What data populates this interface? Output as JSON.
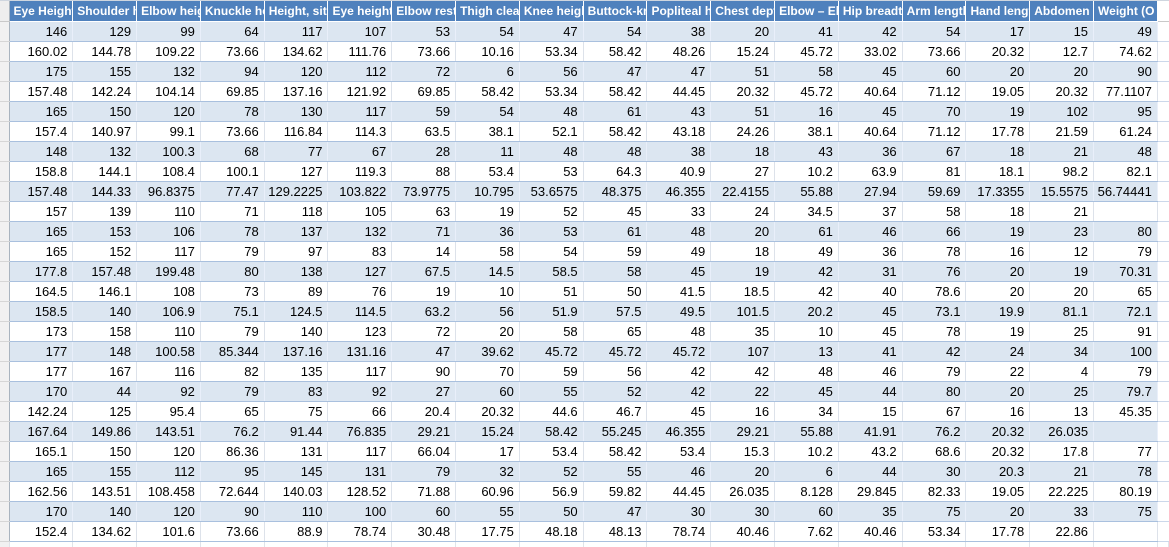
{
  "colors": {
    "header_bg": "#4F81BD",
    "band_bg": "#DCE6F1",
    "row_border": "#95B3D7",
    "header_text": "#FFFFFF",
    "cell_text": "#000000"
  },
  "table": {
    "headers": [
      "Eye Height",
      "Shoulder h",
      "Elbow heig",
      "Knuckle he",
      "Height, sit",
      "Eye height",
      "Elbow rest",
      "Thigh clear",
      "Knee heigh",
      "Buttock-kn",
      "Popliteal h",
      "Chest dept",
      "Elbow – Elb",
      "Hip breadt",
      "Arm length",
      "Hand lengt",
      "Abdomen",
      "Weight (O"
    ],
    "rows": [
      [
        "146",
        "129",
        "99",
        "64",
        "117",
        "107",
        "53",
        "54",
        "47",
        "54",
        "38",
        "20",
        "41",
        "42",
        "54",
        "17",
        "15",
        "49"
      ],
      [
        "160.02",
        "144.78",
        "109.22",
        "73.66",
        "134.62",
        "111.76",
        "73.66",
        "10.16",
        "53.34",
        "58.42",
        "48.26",
        "15.24",
        "45.72",
        "33.02",
        "73.66",
        "20.32",
        "12.7",
        "74.62"
      ],
      [
        "175",
        "155",
        "132",
        "94",
        "120",
        "112",
        "72",
        "6",
        "56",
        "47",
        "47",
        "51",
        "58",
        "45",
        "60",
        "20",
        "20",
        "90"
      ],
      [
        "157.48",
        "142.24",
        "104.14",
        "69.85",
        "137.16",
        "121.92",
        "69.85",
        "58.42",
        "53.34",
        "58.42",
        "44.45",
        "20.32",
        "45.72",
        "40.64",
        "71.12",
        "19.05",
        "20.32",
        "77.1107"
      ],
      [
        "165",
        "150",
        "120",
        "78",
        "130",
        "117",
        "59",
        "54",
        "48",
        "61",
        "43",
        "51",
        "16",
        "45",
        "70",
        "19",
        "102",
        "95"
      ],
      [
        "157.4",
        "140.97",
        "99.1",
        "73.66",
        "116.84",
        "114.3",
        "63.5",
        "38.1",
        "52.1",
        "58.42",
        "43.18",
        "24.26",
        "38.1",
        "40.64",
        "71.12",
        "17.78",
        "21.59",
        "61.24"
      ],
      [
        "148",
        "132",
        "100.3",
        "68",
        "77",
        "67",
        "28",
        "11",
        "48",
        "48",
        "38",
        "18",
        "43",
        "36",
        "67",
        "18",
        "21",
        "48"
      ],
      [
        "158.8",
        "144.1",
        "108.4",
        "100.1",
        "127",
        "119.3",
        "88",
        "53.4",
        "53",
        "64.3",
        "40.9",
        "27",
        "10.2",
        "63.9",
        "81",
        "18.1",
        "98.2",
        "82.1"
      ],
      [
        "157.48",
        "144.33",
        "96.8375",
        "77.47",
        "129.2225",
        "103.822",
        "73.9775",
        "10.795",
        "53.6575",
        "48.375",
        "46.355",
        "22.4155",
        "55.88",
        "27.94",
        "59.69",
        "17.3355",
        "15.5575",
        "56.74441"
      ],
      [
        "157",
        "139",
        "110",
        "71",
        "118",
        "105",
        "63",
        "19",
        "52",
        "45",
        "33",
        "24",
        "34.5",
        "37",
        "58",
        "18",
        "21",
        ""
      ],
      [
        "165",
        "153",
        "106",
        "78",
        "137",
        "132",
        "71",
        "36",
        "53",
        "61",
        "48",
        "20",
        "61",
        "46",
        "66",
        "19",
        "23",
        "80"
      ],
      [
        "165",
        "152",
        "117",
        "79",
        "97",
        "83",
        "14",
        "58",
        "54",
        "59",
        "49",
        "18",
        "49",
        "36",
        "78",
        "16",
        "12",
        "79"
      ],
      [
        "177.8",
        "157.48",
        "199.48",
        "80",
        "138",
        "127",
        "67.5",
        "14.5",
        "58.5",
        "58",
        "45",
        "19",
        "42",
        "31",
        "76",
        "20",
        "19",
        "70.31"
      ],
      [
        "164.5",
        "146.1",
        "108",
        "73",
        "89",
        "76",
        "19",
        "10",
        "51",
        "50",
        "41.5",
        "18.5",
        "42",
        "40",
        "78.6",
        "20",
        "20",
        "65"
      ],
      [
        "158.5",
        "140",
        "106.9",
        "75.1",
        "124.5",
        "114.5",
        "63.2",
        "56",
        "51.9",
        "57.5",
        "49.5",
        "101.5",
        "20.2",
        "45",
        "73.1",
        "19.9",
        "81.1",
        "72.1"
      ],
      [
        "173",
        "158",
        "110",
        "79",
        "140",
        "123",
        "72",
        "20",
        "58",
        "65",
        "48",
        "35",
        "10",
        "45",
        "78",
        "19",
        "25",
        "91"
      ],
      [
        "177",
        "148",
        "100.58",
        "85.344",
        "137.16",
        "131.16",
        "47",
        "39.62",
        "45.72",
        "45.72",
        "45.72",
        "107",
        "13",
        "41",
        "42",
        "24",
        "34",
        "100"
      ],
      [
        "177",
        "167",
        "116",
        "82",
        "135",
        "117",
        "90",
        "70",
        "59",
        "56",
        "42",
        "42",
        "48",
        "46",
        "79",
        "22",
        "4",
        "79"
      ],
      [
        "170",
        "44",
        "92",
        "79",
        "83",
        "92",
        "27",
        "60",
        "55",
        "52",
        "42",
        "22",
        "45",
        "44",
        "80",
        "20",
        "25",
        "79.7"
      ],
      [
        "142.24",
        "125",
        "95.4",
        "65",
        "75",
        "66",
        "20.4",
        "20.32",
        "44.6",
        "46.7",
        "45",
        "16",
        "34",
        "15",
        "67",
        "16",
        "13",
        "45.35"
      ],
      [
        "167.64",
        "149.86",
        "143.51",
        "76.2",
        "91.44",
        "76.835",
        "29.21",
        "15.24",
        "58.42",
        "55.245",
        "46.355",
        "29.21",
        "55.88",
        "41.91",
        "76.2",
        "20.32",
        "26.035",
        ""
      ],
      [
        "165.1",
        "150",
        "120",
        "86.36",
        "131",
        "117",
        "66.04",
        "17",
        "53.4",
        "58.42",
        "53.4",
        "15.3",
        "10.2",
        "43.2",
        "68.6",
        "20.32",
        "17.8",
        "77"
      ],
      [
        "165",
        "155",
        "112",
        "95",
        "145",
        "131",
        "79",
        "32",
        "52",
        "55",
        "46",
        "20",
        "6",
        "44",
        "30",
        "20.3",
        "21",
        "78"
      ],
      [
        "162.56",
        "143.51",
        "108.458",
        "72.644",
        "140.03",
        "128.52",
        "71.88",
        "60.96",
        "56.9",
        "59.82",
        "44.45",
        "26.035",
        "8.128",
        "29.845",
        "82.33",
        "19.05",
        "22.225",
        "80.19"
      ],
      [
        "170",
        "140",
        "120",
        "90",
        "110",
        "100",
        "60",
        "55",
        "50",
        "47",
        "30",
        "30",
        "60",
        "35",
        "75",
        "20",
        "33",
        "75"
      ],
      [
        "152.4",
        "134.62",
        "101.6",
        "73.66",
        "88.9",
        "78.74",
        "30.48",
        "17.75",
        "48.18",
        "48.13",
        "78.74",
        "40.46",
        "7.62",
        "40.46",
        "53.34",
        "17.78",
        "22.86",
        ""
      ]
    ]
  }
}
